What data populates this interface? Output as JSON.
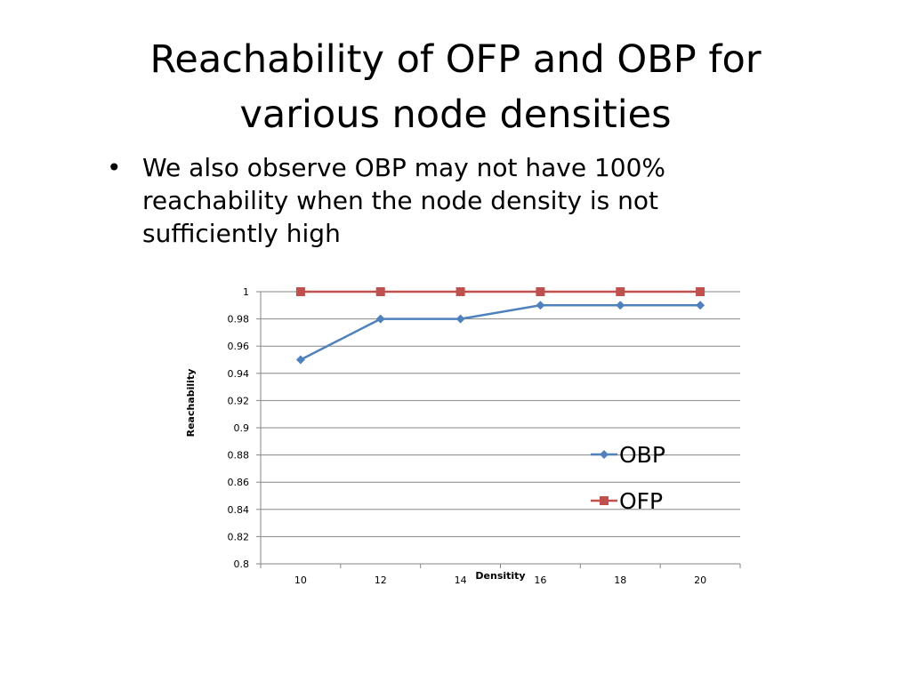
{
  "slide": {
    "title_line1": "Reachability of OFP and OBP for",
    "title_line2": "various node densities",
    "bullet": "We also observe OBP may not have 100% reachability when the node density is not sufficiently high"
  },
  "chart_data": {
    "type": "line",
    "x": [
      10,
      12,
      14,
      16,
      18,
      20
    ],
    "categories": [
      "10",
      "12",
      "14",
      "16",
      "18",
      "20"
    ],
    "series": [
      {
        "name": "OBP",
        "values": [
          0.95,
          0.98,
          0.98,
          0.99,
          0.99,
          0.99
        ],
        "color": "#4f81bd",
        "marker": "diamond"
      },
      {
        "name": "OFP",
        "values": [
          1,
          1,
          1,
          1,
          1,
          1
        ],
        "color": "#c0504d",
        "marker": "square"
      }
    ],
    "title": "",
    "xlabel": "Densitity",
    "ylabel": "Reachability",
    "ylim": [
      0.8,
      1
    ],
    "yticks": [
      "0.8",
      "0.82",
      "0.84",
      "0.86",
      "0.88",
      "0.9",
      "0.92",
      "0.94",
      "0.96",
      "0.98",
      "1"
    ],
    "grid": true,
    "legend_position": "right"
  }
}
